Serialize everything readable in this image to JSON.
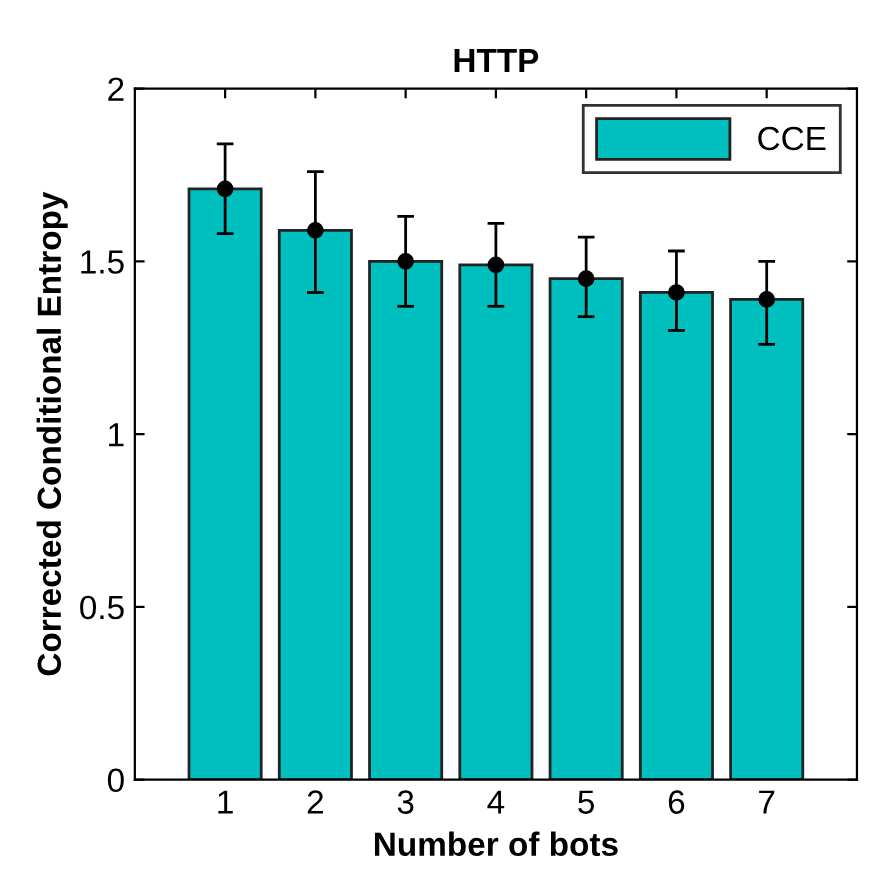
{
  "chart_data": {
    "type": "bar",
    "title": "HTTP",
    "xlabel": "Number of bots",
    "ylabel": "Corrected Conditional Entropy",
    "categories": [
      "1",
      "2",
      "3",
      "4",
      "5",
      "6",
      "7"
    ],
    "series": [
      {
        "name": "CCE",
        "color": "#00bfbf",
        "values": [
          1.71,
          1.59,
          1.5,
          1.49,
          1.45,
          1.41,
          1.39
        ],
        "errors": [
          [
            1.58,
            1.84
          ],
          [
            1.41,
            1.76
          ],
          [
            1.37,
            1.63
          ],
          [
            1.37,
            1.61
          ],
          [
            1.34,
            1.57
          ],
          [
            1.3,
            1.53
          ],
          [
            1.26,
            1.5
          ]
        ]
      },
      {
        "type": "scatter",
        "color": "#000000",
        "x": [
          "1",
          "2",
          "3",
          "4",
          "5",
          "6",
          "7"
        ],
        "values": [
          1.71,
          1.59,
          1.5,
          1.49,
          1.45,
          1.41,
          1.39
        ]
      }
    ],
    "marker": "circle",
    "ylim": [
      0,
      2
    ],
    "yticks": [
      0,
      0.5,
      1,
      1.5,
      2
    ],
    "grid": false,
    "legend": "top right"
  }
}
